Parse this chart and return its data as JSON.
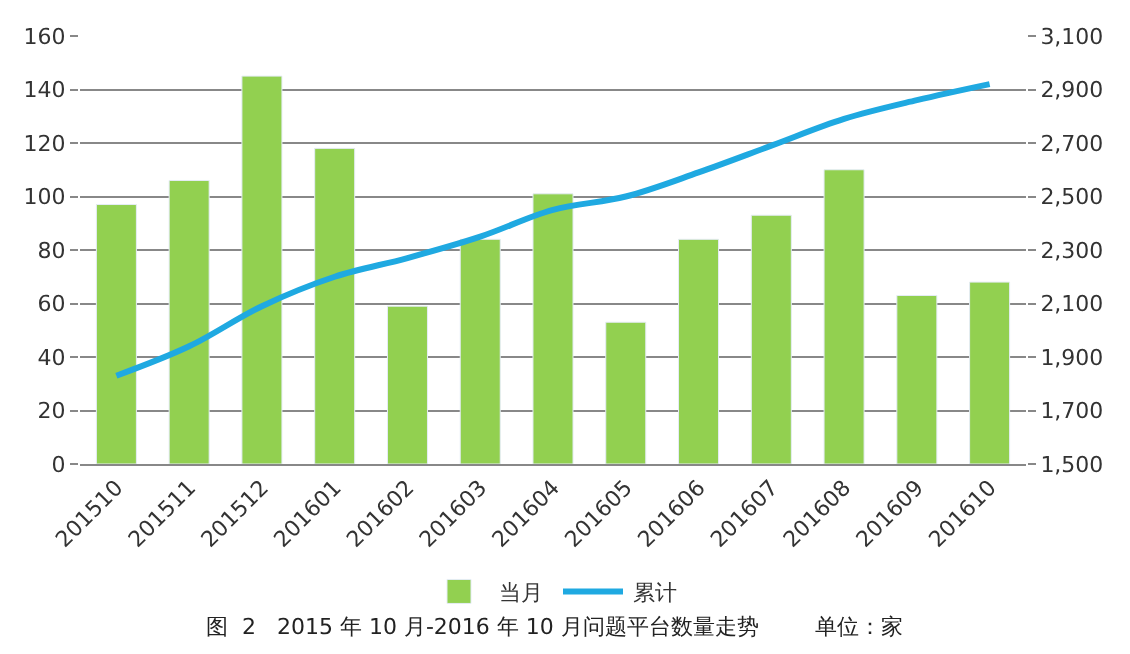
{
  "chart_data": {
    "type": "bar",
    "categories": [
      "201510",
      "201511",
      "201512",
      "201601",
      "201602",
      "201603",
      "201604",
      "201605",
      "201606",
      "201607",
      "201608",
      "201609",
      "201610"
    ],
    "series": [
      {
        "name": "当月",
        "color": "#92d050",
        "values": [
          97,
          106,
          145,
          118,
          59,
          84,
          101,
          53,
          84,
          93,
          110,
          63,
          68
        ]
      },
      {
        "name": "累计",
        "type": "line",
        "axis": "y2",
        "color": "#1fa9e1",
        "values": [
          1830,
          1940,
          2090,
          2200,
          2270,
          2350,
          2450,
          2500,
          2590,
          2690,
          2790,
          2860,
          2920
        ]
      }
    ],
    "ylim": [
      0,
      160
    ],
    "yticks": [
      0,
      20,
      40,
      60,
      80,
      100,
      120,
      140,
      160
    ],
    "y2lim": [
      1500,
      3100
    ],
    "y2ticks": [
      {
        "value": 1500,
        "label": "1,500"
      },
      {
        "value": 1700,
        "label": "1,700"
      },
      {
        "value": 1900,
        "label": "1,900"
      },
      {
        "value": 2100,
        "label": "2,100"
      },
      {
        "value": 2300,
        "label": "2,300"
      },
      {
        "value": 2500,
        "label": "2,500"
      },
      {
        "value": 2700,
        "label": "2,700"
      },
      {
        "value": 2900,
        "label": "2,900"
      },
      {
        "value": 3100,
        "label": "3,100"
      }
    ],
    "grid": "y",
    "legend": "bottom",
    "marker": "none",
    "annotations": [
      "图  2   2015 年 10 月-2016 年 10 月问题平台数量走势        单位：家"
    ]
  }
}
